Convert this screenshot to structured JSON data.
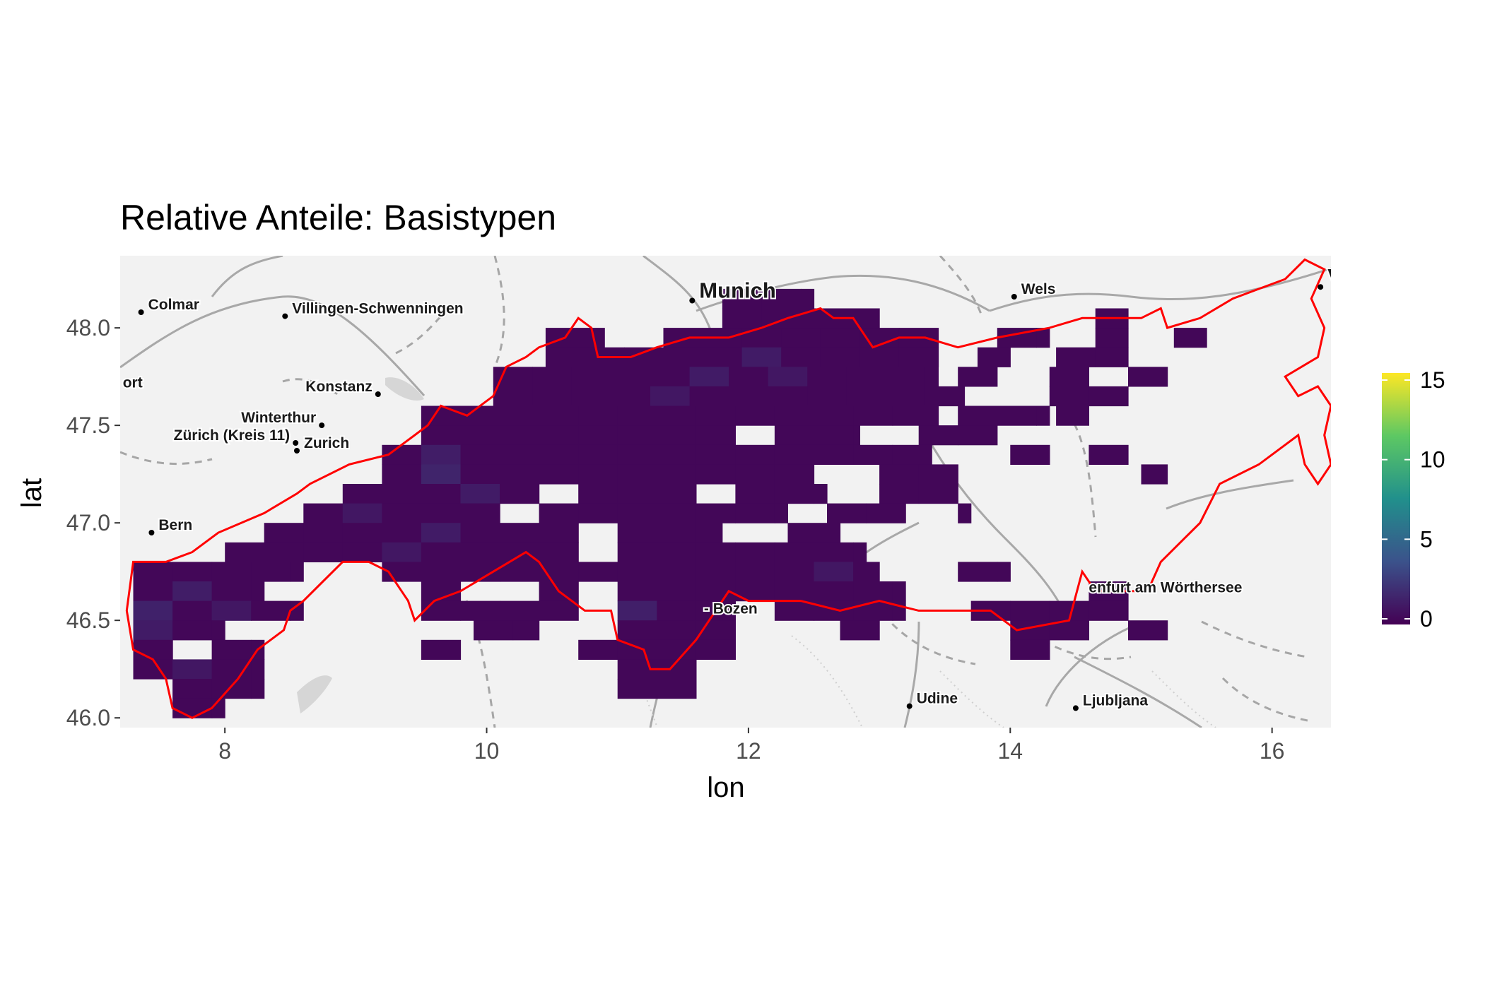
{
  "title": "Relative Anteile: Basistypen",
  "chart_data": {
    "type": "heatmap",
    "title": "Relative Anteile: Basistypen",
    "xlabel": "lon",
    "ylabel": "lat",
    "xlim": [
      7.2,
      16.45
    ],
    "ylim": [
      45.95,
      48.37
    ],
    "x_ticks": [
      8,
      10,
      12,
      14,
      16
    ],
    "y_ticks": [
      46.0,
      46.5,
      47.0,
      47.5,
      48.0
    ],
    "x_tick_labels": [
      "8",
      "10",
      "12",
      "14",
      "16"
    ],
    "y_tick_labels": [
      "46.0",
      "46.5",
      "47.0",
      "47.5",
      "48.0"
    ],
    "colorscale": "viridis",
    "colorbar": {
      "min": 0,
      "max": 15,
      "ticks": [
        0,
        5,
        10,
        15
      ],
      "tick_labels": [
        "0",
        "5",
        "10",
        "15"
      ]
    },
    "grid": true,
    "cell": {
      "lon_step": 0.3,
      "lat_step": 0.1
    },
    "cell_value_default": 0.3,
    "rows": [
      {
        "lat": 48.15,
        "spans": [
          [
            11.8,
            12.5
          ]
        ]
      },
      {
        "lat": 48.05,
        "spans": [
          [
            11.8,
            13.0
          ],
          [
            14.65,
            14.9
          ]
        ]
      },
      {
        "lat": 47.95,
        "spans": [
          [
            10.45,
            10.9
          ],
          [
            11.35,
            13.45
          ],
          [
            13.9,
            14.3
          ],
          [
            14.65,
            14.9
          ],
          [
            15.25,
            15.5
          ]
        ]
      },
      {
        "lat": 47.85,
        "spans": [
          [
            10.45,
            14.0
          ],
          [
            14.35,
            14.9
          ]
        ]
      },
      {
        "lat": 47.75,
        "spans": [
          [
            10.05,
            13.45
          ],
          [
            13.6,
            14.0
          ],
          [
            14.3,
            14.6
          ],
          [
            14.9,
            15.2
          ]
        ]
      },
      {
        "lat": 47.65,
        "spans": [
          [
            10.05,
            13.7
          ],
          [
            14.3,
            14.9
          ]
        ]
      },
      {
        "lat": 47.55,
        "spans": [
          [
            9.5,
            13.45
          ],
          [
            13.6,
            14.3
          ],
          [
            14.35,
            14.6
          ]
        ]
      },
      {
        "lat": 47.45,
        "spans": [
          [
            9.5,
            12.85
          ],
          [
            13.3,
            13.9
          ]
        ]
      },
      {
        "lat": 47.35,
        "spans": [
          [
            9.2,
            13.6
          ],
          [
            14.0,
            14.3
          ],
          [
            14.6,
            14.9
          ]
        ]
      },
      {
        "lat": 47.25,
        "spans": [
          [
            9.2,
            12.6
          ],
          [
            13.0,
            13.6
          ],
          [
            15.0,
            15.2
          ]
        ]
      },
      {
        "lat": 47.15,
        "spans": [
          [
            8.9,
            12.6
          ],
          [
            13.0,
            13.6
          ]
        ]
      },
      {
        "lat": 47.05,
        "spans": [
          [
            8.6,
            12.3
          ],
          [
            12.6,
            13.2
          ],
          [
            13.6,
            13.7
          ]
        ]
      },
      {
        "lat": 46.95,
        "spans": [
          [
            8.3,
            11.8
          ],
          [
            12.3,
            12.7
          ]
        ]
      },
      {
        "lat": 46.85,
        "spans": [
          [
            8.0,
            12.9
          ]
        ]
      },
      {
        "lat": 46.75,
        "spans": [
          [
            7.3,
            8.6
          ],
          [
            9.2,
            13.0
          ],
          [
            13.6,
            14.0
          ]
        ]
      },
      {
        "lat": 46.65,
        "spans": [
          [
            7.3,
            8.3
          ],
          [
            9.5,
            9.8
          ],
          [
            10.4,
            10.7
          ],
          [
            11.0,
            13.2
          ],
          [
            14.6,
            14.9
          ]
        ]
      },
      {
        "lat": 46.55,
        "spans": [
          [
            7.3,
            8.6
          ],
          [
            9.5,
            10.7
          ],
          [
            11.0,
            11.9
          ],
          [
            12.2,
            13.2
          ],
          [
            13.7,
            14.9
          ]
        ]
      },
      {
        "lat": 46.45,
        "spans": [
          [
            7.3,
            8.0
          ],
          [
            9.9,
            10.4
          ],
          [
            11.0,
            11.9
          ],
          [
            12.7,
            13.0
          ],
          [
            14.0,
            14.6
          ],
          [
            14.9,
            15.2
          ]
        ]
      },
      {
        "lat": 46.35,
        "spans": [
          [
            7.3,
            8.3
          ],
          [
            9.5,
            9.8
          ],
          [
            10.7,
            11.9
          ],
          [
            14.0,
            14.3
          ]
        ]
      },
      {
        "lat": 46.25,
        "spans": [
          [
            7.3,
            8.3
          ],
          [
            11.0,
            11.6
          ]
        ]
      },
      {
        "lat": 46.15,
        "spans": [
          [
            7.6,
            8.3
          ],
          [
            11.0,
            11.6
          ]
        ]
      },
      {
        "lat": 46.05,
        "spans": [
          [
            7.6,
            8.0
          ]
        ]
      }
    ],
    "missing_cells": [
      {
        "lat": 47.85,
        "lon": 13.55
      },
      {
        "lat": 47.75,
        "lon": 14.05
      },
      {
        "lat": 47.65,
        "lon": 13.8
      },
      {
        "lat": 47.45,
        "lon": 11.95
      },
      {
        "lat": 47.35,
        "lon": 13.5
      },
      {
        "lat": 47.25,
        "lon": 12.65
      },
      {
        "lat": 47.15,
        "lon": 10.6
      },
      {
        "lat": 47.15,
        "lon": 11.9
      },
      {
        "lat": 47.05,
        "lon": 10.4
      },
      {
        "lat": 46.95,
        "lon": 10.8
      },
      {
        "lat": 46.85,
        "lon": 10.8
      },
      {
        "lat": 46.75,
        "lon": 9.5
      },
      {
        "lat": 46.35,
        "lon": 7.75
      }
    ],
    "higher_cells": [
      {
        "lat": 47.85,
        "lon": 12.05,
        "value": 1.2
      },
      {
        "lat": 47.75,
        "lon": 11.75,
        "value": 1.2
      },
      {
        "lat": 47.75,
        "lon": 12.35,
        "value": 1.0
      },
      {
        "lat": 47.65,
        "lon": 11.45,
        "value": 1.0
      },
      {
        "lat": 47.35,
        "lon": 9.65,
        "value": 1.3
      },
      {
        "lat": 47.25,
        "lon": 9.65,
        "value": 1.6
      },
      {
        "lat": 47.15,
        "lon": 10.0,
        "value": 1.2
      },
      {
        "lat": 47.05,
        "lon": 8.95,
        "value": 1.0
      },
      {
        "lat": 46.95,
        "lon": 9.65,
        "value": 1.2
      },
      {
        "lat": 46.85,
        "lon": 9.35,
        "value": 1.0
      },
      {
        "lat": 46.75,
        "lon": 12.65,
        "value": 1.0
      },
      {
        "lat": 46.65,
        "lon": 7.75,
        "value": 1.3
      },
      {
        "lat": 46.55,
        "lon": 7.45,
        "value": 1.5
      },
      {
        "lat": 46.55,
        "lon": 8.1,
        "value": 1.0
      },
      {
        "lat": 46.55,
        "lon": 11.1,
        "value": 1.4
      },
      {
        "lat": 46.45,
        "lon": 7.45,
        "value": 1.2
      },
      {
        "lat": 46.25,
        "lon": 7.75,
        "value": 1.0
      }
    ],
    "region_outline_color": "#ff0000",
    "region_outline_vertices": [
      [
        7.25,
        46.55
      ],
      [
        7.3,
        46.8
      ],
      [
        7.55,
        46.8
      ],
      [
        7.75,
        46.85
      ],
      [
        7.95,
        46.95
      ],
      [
        8.3,
        47.05
      ],
      [
        8.55,
        47.15
      ],
      [
        8.65,
        47.2
      ],
      [
        8.95,
        47.3
      ],
      [
        9.25,
        47.35
      ],
      [
        9.45,
        47.45
      ],
      [
        9.55,
        47.5
      ],
      [
        9.65,
        47.6
      ],
      [
        9.85,
        47.55
      ],
      [
        10.05,
        47.65
      ],
      [
        10.15,
        47.8
      ],
      [
        10.3,
        47.85
      ],
      [
        10.4,
        47.9
      ],
      [
        10.6,
        47.95
      ],
      [
        10.7,
        48.05
      ],
      [
        10.8,
        48.0
      ],
      [
        10.85,
        47.85
      ],
      [
        11.1,
        47.85
      ],
      [
        11.3,
        47.9
      ],
      [
        11.55,
        47.95
      ],
      [
        11.85,
        47.95
      ],
      [
        12.1,
        48.0
      ],
      [
        12.3,
        48.05
      ],
      [
        12.55,
        48.1
      ],
      [
        12.65,
        48.05
      ],
      [
        12.8,
        48.05
      ],
      [
        12.95,
        47.9
      ],
      [
        13.15,
        47.95
      ],
      [
        13.35,
        47.95
      ],
      [
        13.6,
        47.9
      ],
      [
        13.9,
        47.95
      ],
      [
        14.3,
        48.0
      ],
      [
        14.55,
        48.05
      ],
      [
        14.8,
        48.05
      ],
      [
        15.0,
        48.05
      ],
      [
        15.15,
        48.1
      ],
      [
        15.2,
        48.0
      ],
      [
        15.45,
        48.05
      ],
      [
        15.7,
        48.15
      ],
      [
        15.9,
        48.2
      ],
      [
        16.1,
        48.25
      ],
      [
        16.25,
        48.35
      ],
      [
        16.4,
        48.3
      ],
      [
        16.3,
        48.15
      ],
      [
        16.4,
        48.0
      ],
      [
        16.35,
        47.85
      ],
      [
        16.1,
        47.75
      ],
      [
        16.2,
        47.65
      ],
      [
        16.35,
        47.7
      ],
      [
        16.45,
        47.6
      ],
      [
        16.4,
        47.45
      ],
      [
        16.45,
        47.3
      ],
      [
        16.35,
        47.2
      ],
      [
        16.25,
        47.3
      ],
      [
        16.2,
        47.45
      ],
      [
        15.9,
        47.3
      ],
      [
        15.6,
        47.2
      ],
      [
        15.45,
        47.0
      ],
      [
        15.3,
        46.9
      ],
      [
        15.15,
        46.8
      ],
      [
        15.05,
        46.65
      ],
      [
        14.85,
        46.65
      ],
      [
        14.65,
        46.65
      ],
      [
        14.55,
        46.75
      ],
      [
        14.45,
        46.5
      ],
      [
        14.05,
        46.45
      ],
      [
        13.85,
        46.55
      ],
      [
        13.6,
        46.55
      ],
      [
        13.3,
        46.55
      ],
      [
        13.0,
        46.6
      ],
      [
        12.7,
        46.55
      ],
      [
        12.4,
        46.6
      ],
      [
        12.2,
        46.6
      ],
      [
        12.0,
        46.6
      ],
      [
        11.85,
        46.65
      ],
      [
        11.75,
        46.55
      ],
      [
        11.6,
        46.4
      ],
      [
        11.4,
        46.25
      ],
      [
        11.25,
        46.25
      ],
      [
        11.2,
        46.35
      ],
      [
        11.0,
        46.4
      ],
      [
        10.95,
        46.55
      ],
      [
        10.75,
        46.55
      ],
      [
        10.55,
        46.65
      ],
      [
        10.4,
        46.8
      ],
      [
        10.3,
        46.85
      ],
      [
        10.05,
        46.75
      ],
      [
        9.8,
        46.65
      ],
      [
        9.6,
        46.6
      ],
      [
        9.45,
        46.5
      ],
      [
        9.4,
        46.6
      ],
      [
        9.25,
        46.75
      ],
      [
        9.1,
        46.8
      ],
      [
        8.9,
        46.8
      ],
      [
        8.75,
        46.7
      ],
      [
        8.6,
        46.6
      ],
      [
        8.5,
        46.55
      ],
      [
        8.45,
        46.45
      ],
      [
        8.25,
        46.35
      ],
      [
        8.1,
        46.2
      ],
      [
        7.9,
        46.05
      ],
      [
        7.75,
        46.0
      ],
      [
        7.6,
        46.05
      ],
      [
        7.55,
        46.2
      ],
      [
        7.45,
        46.3
      ],
      [
        7.3,
        46.35
      ],
      [
        7.25,
        46.55
      ]
    ],
    "places": [
      {
        "name": "Munich",
        "lon": 11.57,
        "lat": 48.14,
        "major": true
      },
      {
        "name": "Colmar",
        "lon": 7.36,
        "lat": 48.08
      },
      {
        "name": "Villingen-Schwenningen",
        "lon": 8.46,
        "lat": 48.06
      },
      {
        "name": "Wels",
        "lon": 14.03,
        "lat": 48.16
      },
      {
        "name": "ort",
        "lon": 7.22,
        "lat": 47.68,
        "nomarker": true
      },
      {
        "name": "Konstanz",
        "lon": 9.17,
        "lat": 47.66,
        "label_left": true
      },
      {
        "name": "Winterthur",
        "lon": 8.74,
        "lat": 47.5,
        "label_left": true
      },
      {
        "name": "Zürich (Kreis 11)",
        "lon": 8.54,
        "lat": 47.41,
        "label_left": true
      },
      {
        "name": "Zurich",
        "lon": 8.55,
        "lat": 47.37
      },
      {
        "name": "Bern",
        "lon": 7.44,
        "lat": 46.95
      },
      {
        "name": "- Bozen",
        "lon": 11.66,
        "lat": 46.52,
        "nomarker": true
      },
      {
        "name": "Udine",
        "lon": 13.23,
        "lat": 46.06
      },
      {
        "name": "Ljubljana",
        "lon": 14.5,
        "lat": 46.05
      },
      {
        "name": "enfurt am Wörthersee",
        "lon": 14.6,
        "lat": 46.63,
        "nomarker": true
      },
      {
        "name": "V",
        "lon": 16.37,
        "lat": 48.21,
        "major": true
      }
    ]
  }
}
